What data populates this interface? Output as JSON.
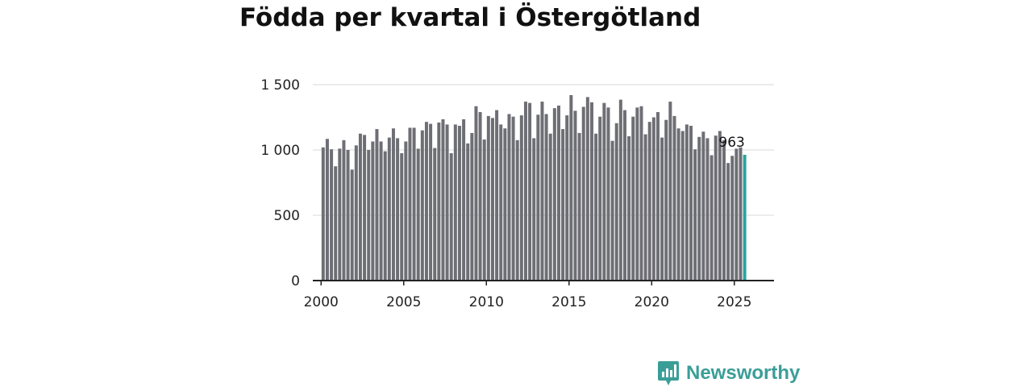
{
  "chart_data": {
    "type": "bar",
    "title": "Födda per kvartal i Östergötland",
    "xlabel": "",
    "ylabel": "",
    "ylim": [
      0,
      1500
    ],
    "xlim": [
      1999.5,
      2027.4
    ],
    "y_ticks": [
      {
        "value": 0,
        "label": "0"
      },
      {
        "value": 500,
        "label": "500"
      },
      {
        "value": 1000,
        "label": "1 000"
      },
      {
        "value": 1500,
        "label": "1 500"
      }
    ],
    "x_ticks": [
      {
        "value": 2000,
        "label": "2000"
      },
      {
        "value": 2005,
        "label": "2005"
      },
      {
        "value": 2010,
        "label": "2010"
      },
      {
        "value": 2015,
        "label": "2015"
      },
      {
        "value": 2020,
        "label": "2020"
      },
      {
        "value": 2025,
        "label": "2025"
      }
    ],
    "grid": true,
    "bar_color": "#6e6e75",
    "highlight_color": "#2aa4a0",
    "start_year": 2000,
    "start_quarter": 1,
    "values": [
      1020,
      1085,
      1005,
      875,
      1010,
      1075,
      1000,
      850,
      1035,
      1125,
      1115,
      1000,
      1065,
      1160,
      1065,
      990,
      1095,
      1165,
      1090,
      975,
      1065,
      1170,
      1170,
      1010,
      1150,
      1215,
      1200,
      1015,
      1210,
      1235,
      1195,
      975,
      1195,
      1185,
      1235,
      1050,
      1130,
      1335,
      1290,
      1080,
      1260,
      1245,
      1305,
      1195,
      1165,
      1275,
      1255,
      1075,
      1265,
      1370,
      1360,
      1090,
      1270,
      1370,
      1275,
      1125,
      1320,
      1340,
      1160,
      1265,
      1420,
      1300,
      1130,
      1330,
      1405,
      1365,
      1125,
      1255,
      1360,
      1325,
      1070,
      1205,
      1385,
      1305,
      1105,
      1255,
      1325,
      1335,
      1120,
      1215,
      1250,
      1290,
      1095,
      1230,
      1370,
      1260,
      1165,
      1145,
      1195,
      1185,
      1005,
      1100,
      1140,
      1090,
      960,
      1110,
      1145,
      1075,
      900,
      955,
      1010,
      1020,
      963
    ],
    "annotation": {
      "label": "963"
    }
  },
  "brand": {
    "name": "Newsworthy"
  }
}
